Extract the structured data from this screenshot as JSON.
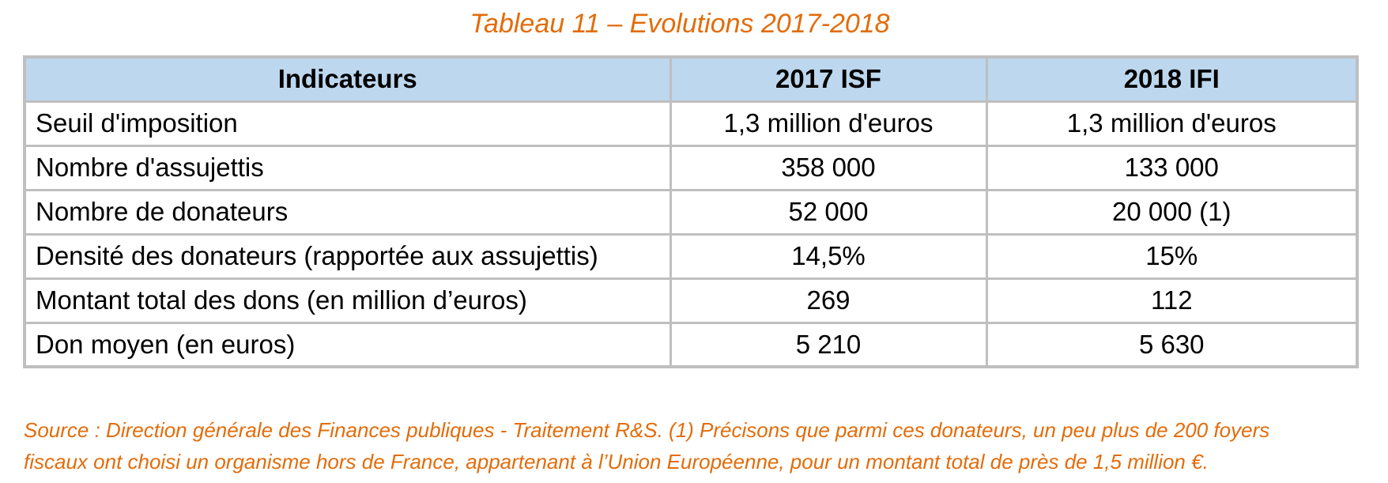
{
  "title": "Tableau 11 – Evolutions 2017-2018",
  "table": {
    "headers": [
      "Indicateurs",
      "2017 ISF",
      "2018 IFI"
    ],
    "rows": [
      [
        "Seuil d'imposition",
        "1,3 million d'euros",
        "1,3 million d'euros"
      ],
      [
        "Nombre d'assujettis",
        "358 000",
        "133 000"
      ],
      [
        "Nombre de donateurs",
        "52 000",
        "20 000 (1)"
      ],
      [
        "Densité des donateurs (rapportée aux assujettis)",
        "14,5%",
        "15%"
      ],
      [
        "Montant total des dons (en million d’euros)",
        "269",
        "112"
      ],
      [
        "Don moyen (en euros)",
        "5 210",
        "5 630"
      ]
    ]
  },
  "source": {
    "line1": "Source : Direction générale des Finances publiques - Traitement R&S. (1) Précisons que parmi ces donateurs, un peu plus de 200 foyers",
    "line2": "fiscaux ont choisi un organisme hors de France, appartenant à l’Union Européenne, pour un montant total de près de 1,5 million €."
  }
}
